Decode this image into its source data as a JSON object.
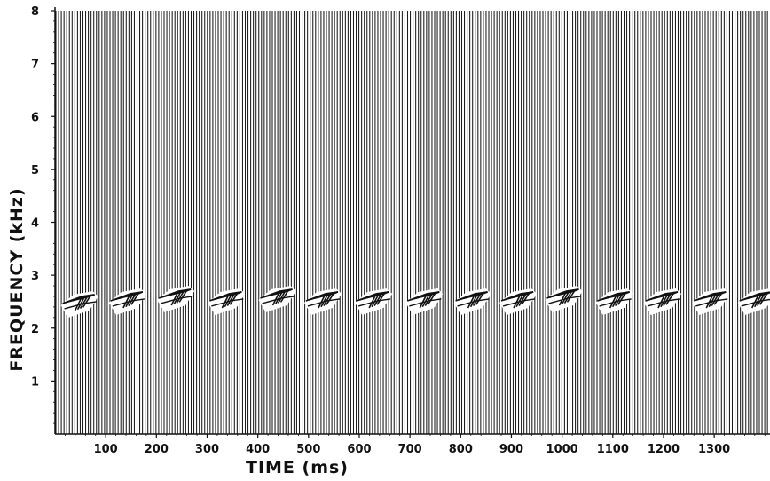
{
  "chart_data": {
    "type": "heatmap",
    "title": "",
    "xlabel": "TIME (ms)",
    "ylabel": "FREQUENCY (kHz)",
    "xlim": [
      0,
      1410
    ],
    "ylim": [
      0,
      8
    ],
    "x_ticks": [
      100,
      200,
      300,
      400,
      500,
      600,
      700,
      800,
      900,
      1000,
      1100,
      1200,
      1300
    ],
    "y_ticks": [
      1,
      2,
      3,
      4,
      5,
      6,
      7,
      8
    ],
    "grid": false,
    "series": [
      {
        "values": [
          {
            "time_ms": 50,
            "freq_khz": 2.5
          },
          {
            "time_ms": 145,
            "freq_khz": 2.55
          },
          {
            "time_ms": 240,
            "freq_khz": 2.6
          },
          {
            "time_ms": 340,
            "freq_khz": 2.55
          },
          {
            "time_ms": 440,
            "freq_khz": 2.6
          },
          {
            "time_ms": 530,
            "freq_khz": 2.55
          },
          {
            "time_ms": 630,
            "freq_khz": 2.55
          },
          {
            "time_ms": 730,
            "freq_khz": 2.55
          },
          {
            "time_ms": 825,
            "freq_khz": 2.55
          },
          {
            "time_ms": 915,
            "freq_khz": 2.55
          },
          {
            "time_ms": 1005,
            "freq_khz": 2.6
          },
          {
            "time_ms": 1105,
            "freq_khz": 2.55
          },
          {
            "time_ms": 1200,
            "freq_khz": 2.55
          },
          {
            "time_ms": 1295,
            "freq_khz": 2.55
          },
          {
            "time_ms": 1385,
            "freq_khz": 2.55
          }
        ]
      }
    ]
  }
}
